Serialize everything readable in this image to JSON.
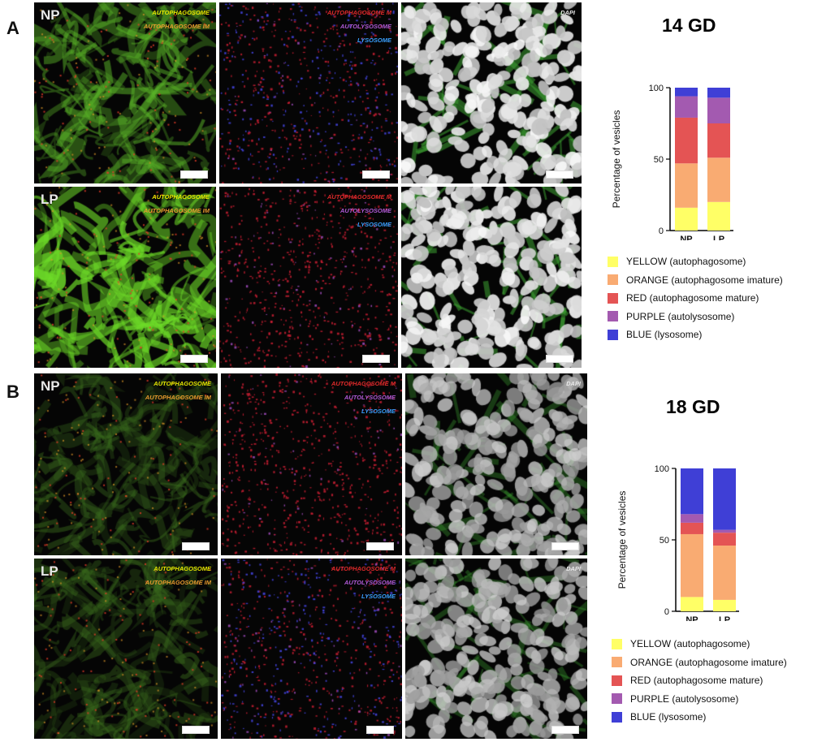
{
  "panels": [
    {
      "letter": "A",
      "images": [
        {
          "group": "NP",
          "labels": [
            "AUTOPHAGOSOME",
            "AUTOPHAGOSOME IM"
          ],
          "label_colors": [
            "#e6e600",
            "#e69a2e"
          ],
          "palette": "green"
        },
        {
          "group": "",
          "labels": [
            "AUTOPHAGOSOME M",
            "AUTOLYSOSOME",
            "LYSOSOME"
          ],
          "label_colors": [
            "#e02a2a",
            "#b05ad6",
            "#3aa0ff"
          ],
          "palette": "redblue"
        },
        {
          "group": "",
          "labels": [
            "DAPI"
          ],
          "label_colors": [
            "#e8e8e8"
          ],
          "palette": "nuclei"
        },
        {
          "group": "LP",
          "labels": [
            "AUTOPHAGOSOME",
            "AUTOPHAGOSOME IM"
          ],
          "label_colors": [
            "#e6e600",
            "#e69a2e"
          ],
          "palette": "greenbright"
        },
        {
          "group": "",
          "labels": [
            "AUTOPHAGOSOME M",
            "AUTOLYSOSOME",
            "LYSOSOME"
          ],
          "label_colors": [
            "#e02a2a",
            "#b05ad6",
            "#3aa0ff"
          ],
          "palette": "red"
        },
        {
          "group": "",
          "labels": [],
          "label_colors": [],
          "palette": "nuclei"
        }
      ]
    },
    {
      "letter": "B",
      "images": [
        {
          "group": "NP",
          "labels": [
            "AUTOPHAGOSOME",
            "AUTOPHAGOSOME IM"
          ],
          "label_colors": [
            "#e6e600",
            "#e69a2e"
          ],
          "palette": "greendim"
        },
        {
          "group": "",
          "labels": [
            "AUTOPHAGOSOME M",
            "AUTOLYSOSOME",
            "LYSOSOME"
          ],
          "label_colors": [
            "#e02a2a",
            "#b05ad6",
            "#3aa0ff"
          ],
          "palette": "red"
        },
        {
          "group": "",
          "labels": [
            "DAPI"
          ],
          "label_colors": [
            "#e8e8e8"
          ],
          "palette": "nucleidim"
        },
        {
          "group": "LP",
          "labels": [
            "AUTOPHAGOSOME",
            "AUTOPHAGOSOME IM"
          ],
          "label_colors": [
            "#e6e600",
            "#e69a2e"
          ],
          "palette": "greendim"
        },
        {
          "group": "",
          "labels": [
            "AUTOPHAGOSOME M",
            "AUTOLYSOSOME",
            "LYSOSOME"
          ],
          "label_colors": [
            "#e02a2a",
            "#b05ad6",
            "#3aa0ff"
          ],
          "palette": "redblue"
        },
        {
          "group": "",
          "labels": [
            "DAPI"
          ],
          "label_colors": [
            "#e8e8e8"
          ],
          "palette": "nucleidim"
        }
      ]
    }
  ],
  "chart_data": [
    {
      "type": "bar",
      "stacked": true,
      "title": "14 GD",
      "ylabel": "Percentage of vesicles",
      "xlabel": "",
      "ylim": [
        0,
        100
      ],
      "yticks": [
        0,
        50,
        100
      ],
      "categories": [
        "NP",
        "LP"
      ],
      "series": [
        {
          "name": "YELLOW (autophagosome)",
          "color": "#ffff66",
          "values": [
            16,
            20
          ]
        },
        {
          "name": "ORANGE (autophagosome imature)",
          "color": "#f9ab72",
          "values": [
            31,
            31
          ]
        },
        {
          "name": "RED (autophagosome mature)",
          "color": "#e45454",
          "values": [
            32,
            24
          ]
        },
        {
          "name": "PURPLE (autolysosome)",
          "color": "#a35ab0",
          "values": [
            15,
            18
          ]
        },
        {
          "name": "BLUE (lysosome)",
          "color": "#3f3fd6",
          "values": [
            6,
            7
          ]
        }
      ],
      "legend": "bottom"
    },
    {
      "type": "bar",
      "stacked": true,
      "title": "18 GD",
      "ylabel": "Percentage of vesicles",
      "xlabel": "",
      "ylim": [
        0,
        100
      ],
      "yticks": [
        0,
        50,
        100
      ],
      "categories": [
        "NP",
        "LP"
      ],
      "series": [
        {
          "name": "YELLOW (autophagosome)",
          "color": "#ffff66",
          "values": [
            10,
            8
          ]
        },
        {
          "name": "ORANGE (autophagosome imature)",
          "color": "#f9ab72",
          "values": [
            44,
            38
          ]
        },
        {
          "name": "RED (autophagosome mature)",
          "color": "#e45454",
          "values": [
            8,
            9
          ]
        },
        {
          "name": "PURPLE (autolysosome)",
          "color": "#a35ab0",
          "values": [
            6,
            2
          ]
        },
        {
          "name": "BLUE (lysosome)",
          "color": "#3f3fd6",
          "values": [
            32,
            43
          ]
        }
      ],
      "legend": "bottom"
    }
  ]
}
